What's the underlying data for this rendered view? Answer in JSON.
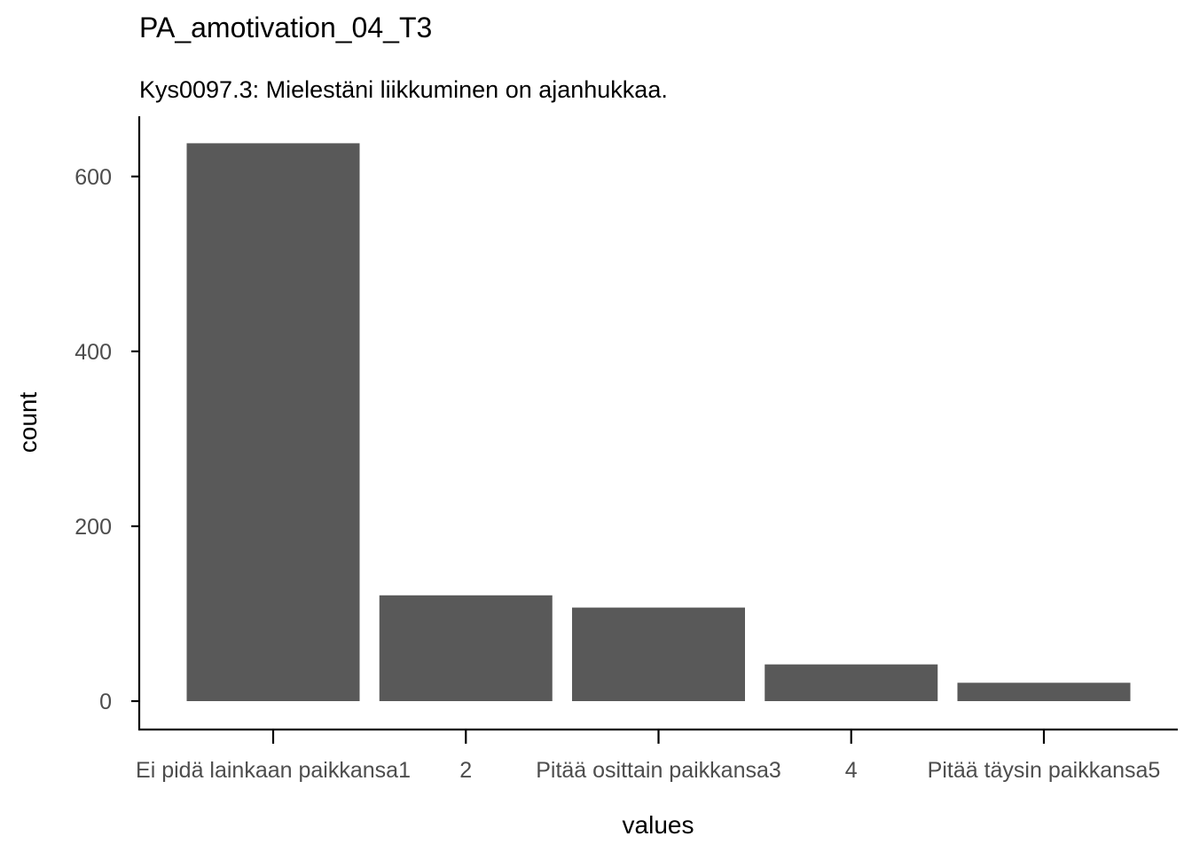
{
  "chart_data": {
    "type": "bar",
    "title": "PA_amotivation_04_T3",
    "subtitle": "Kys0097.3: Mielestäni liikkuminen on ajanhukkaa.",
    "xlabel": "values",
    "ylabel": "count",
    "categories": [
      "Ei pidä lainkaan paikkansa1",
      "2",
      "Pitää osittain paikkansa3",
      "4",
      "Pitää täysin paikkansa5"
    ],
    "values": [
      638,
      121,
      107,
      42,
      21
    ],
    "ylim": [
      0,
      660
    ],
    "yticks": [
      0,
      200,
      400,
      600
    ],
    "ytick_labels": [
      "0",
      "200",
      "400",
      "600"
    ],
    "grid": false,
    "legend": "none",
    "bar_color": "#595959"
  }
}
